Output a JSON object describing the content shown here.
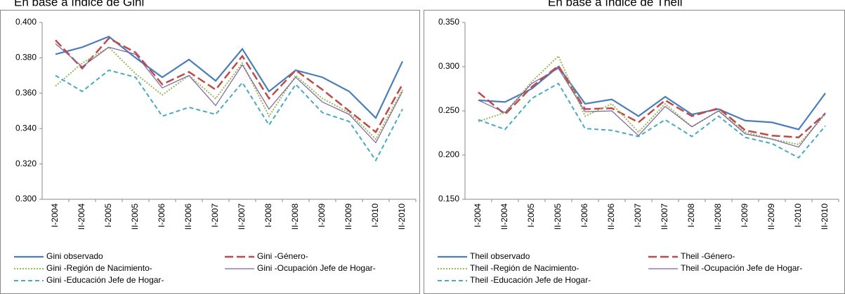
{
  "chart_data": [
    {
      "type": "line",
      "title": "En base a índice de Gini",
      "categories": [
        "I-2004",
        "II-2004",
        "I-2005",
        "II-2005",
        "I-2006",
        "II-2006",
        "I-2007",
        "II-2007",
        "I-2008",
        "II-2008",
        "I-2009",
        "II-2009",
        "I-2010",
        "II-2010"
      ],
      "ylim": [
        0.3,
        0.4
      ],
      "yticks": [
        {
          "value": 0.3,
          "label": "0.300"
        },
        {
          "value": 0.32,
          "label": "0.320"
        },
        {
          "value": 0.34,
          "label": "0.340"
        },
        {
          "value": 0.36,
          "label": "0.360"
        },
        {
          "value": 0.38,
          "label": "0.380"
        },
        {
          "value": 0.4,
          "label": "0.400"
        }
      ],
      "series": [
        {
          "name": "Gini observado",
          "color": "#4a7ebb",
          "style": "solid",
          "values": [
            0.382,
            0.386,
            0.392,
            0.38,
            0.369,
            0.379,
            0.367,
            0.385,
            0.361,
            0.373,
            0.369,
            0.361,
            0.346,
            0.378
          ]
        },
        {
          "name": "Gini -Género-",
          "color": "#be4b48",
          "style": "long-dash",
          "values": [
            0.39,
            0.374,
            0.391,
            0.383,
            0.365,
            0.372,
            0.362,
            0.381,
            0.357,
            0.373,
            0.362,
            0.35,
            0.338,
            0.365
          ]
        },
        {
          "name": "Gini -Región de Nacimiento-",
          "color": "#98b954",
          "style": "dotted",
          "values": [
            0.364,
            0.377,
            0.386,
            0.371,
            0.359,
            0.37,
            0.357,
            0.377,
            0.347,
            0.37,
            0.357,
            0.349,
            0.334,
            0.362
          ]
        },
        {
          "name": "Gini -Ocupación Jefe de Hogar-",
          "color": "#7d60a0",
          "style": "solid-thin",
          "values": [
            0.388,
            0.375,
            0.386,
            0.382,
            0.363,
            0.37,
            0.353,
            0.376,
            0.351,
            0.369,
            0.355,
            0.348,
            0.332,
            0.361
          ]
        },
        {
          "name": "Gini -Educación Jefe de Hogar-",
          "color": "#46aac5",
          "style": "dashed",
          "values": [
            0.37,
            0.361,
            0.373,
            0.369,
            0.347,
            0.352,
            0.348,
            0.366,
            0.342,
            0.365,
            0.349,
            0.344,
            0.322,
            0.351
          ]
        }
      ]
    },
    {
      "type": "line",
      "title": "En base a índice de Theil",
      "categories": [
        "I-2004",
        "II-2004",
        "I-2005",
        "II-2005",
        "I-2006",
        "II-2006",
        "I-2007",
        "II-2007",
        "I-2008",
        "II-2008",
        "I-2009",
        "II-2009",
        "I-2010",
        "II-2010"
      ],
      "ylim": [
        0.15,
        0.35
      ],
      "yticks": [
        {
          "value": 0.15,
          "label": "0.150"
        },
        {
          "value": 0.2,
          "label": "0.200"
        },
        {
          "value": 0.25,
          "label": "0.250"
        },
        {
          "value": 0.3,
          "label": "0.300"
        },
        {
          "value": 0.35,
          "label": "0.350"
        }
      ],
      "series": [
        {
          "name": "Theil observado",
          "color": "#4a7ebb",
          "style": "solid",
          "values": [
            0.262,
            0.26,
            0.275,
            0.3,
            0.258,
            0.263,
            0.244,
            0.266,
            0.246,
            0.252,
            0.239,
            0.237,
            0.229,
            0.27
          ]
        },
        {
          "name": "Theil -Género-",
          "color": "#be4b48",
          "style": "long-dash",
          "values": [
            0.271,
            0.246,
            0.277,
            0.301,
            0.252,
            0.253,
            0.237,
            0.262,
            0.244,
            0.253,
            0.228,
            0.222,
            0.22,
            0.247
          ]
        },
        {
          "name": "Theil -Región de Nacimiento-",
          "color": "#98b954",
          "style": "dotted",
          "values": [
            0.238,
            0.248,
            0.283,
            0.312,
            0.244,
            0.258,
            0.226,
            0.258,
            0.232,
            0.25,
            0.226,
            0.218,
            0.212,
            0.246
          ]
        },
        {
          "name": "Theil -Ocupación Jefe de Hogar-",
          "color": "#7d60a0",
          "style": "solid-thin",
          "values": [
            0.262,
            0.248,
            0.281,
            0.298,
            0.249,
            0.25,
            0.222,
            0.255,
            0.232,
            0.25,
            0.224,
            0.218,
            0.209,
            0.248
          ]
        },
        {
          "name": "Theil -Educación Jefe de Hogar-",
          "color": "#46aac5",
          "style": "dashed",
          "values": [
            0.24,
            0.229,
            0.264,
            0.281,
            0.23,
            0.228,
            0.221,
            0.24,
            0.221,
            0.244,
            0.22,
            0.213,
            0.197,
            0.233
          ]
        }
      ]
    }
  ]
}
